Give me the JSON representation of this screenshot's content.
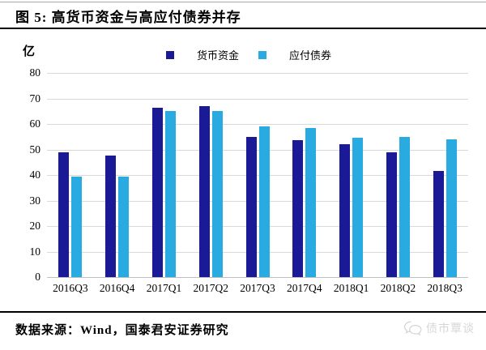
{
  "header": {
    "title": "图 5: 高货币资金与高应付债券并存"
  },
  "footer": {
    "source_note": "数据来源：Wind，国泰君安证券研究",
    "watermark_text": "债市覃谈"
  },
  "chart_data": {
    "type": "bar",
    "title": "高货币资金与高应付债券并存",
    "unit_label": "亿",
    "categories": [
      "2016Q3",
      "2016Q4",
      "2017Q1",
      "2017Q2",
      "2017Q3",
      "2017Q4",
      "2018Q1",
      "2018Q2",
      "2018Q3"
    ],
    "series": [
      {
        "name": "货币资金",
        "color": "#1a1a96",
        "values": [
          49,
          47.5,
          66.5,
          67,
          55,
          53.5,
          52,
          49,
          41.5
        ]
      },
      {
        "name": "应付债券",
        "color": "#29abe2",
        "values": [
          39.5,
          39.5,
          65,
          65,
          59,
          58.5,
          54.5,
          55,
          54
        ]
      }
    ],
    "ylim": [
      0,
      80
    ],
    "yticks": [
      0,
      10,
      20,
      30,
      40,
      50,
      60,
      70,
      80
    ],
    "grid": true,
    "legend_position": "top",
    "colors": {
      "gridline": "#d9d9d9",
      "baseline": "#bfbfbf",
      "rule": "#000000"
    }
  }
}
